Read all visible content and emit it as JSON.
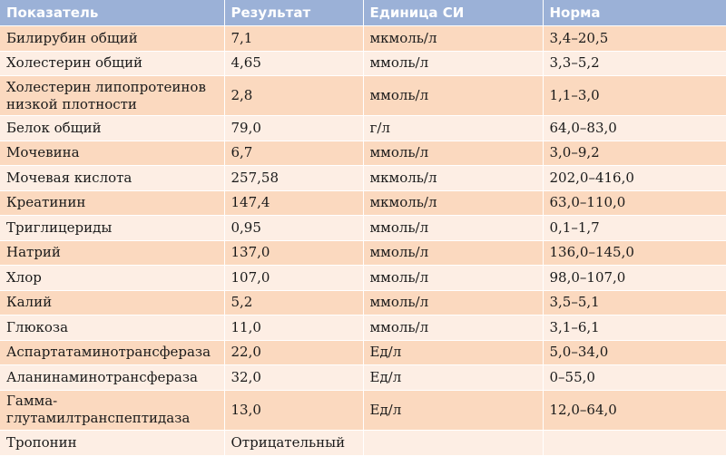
{
  "columns": [
    "Показатель",
    "Результат",
    "Единица СИ",
    "Норма"
  ],
  "rows": [
    {
      "name": "Билирубин общий",
      "result": "7,1",
      "unit": "мкмоль/л",
      "norm": "3,4–20,5"
    },
    {
      "name": "Холестерин общий",
      "result": "4,65",
      "unit": "ммоль/л",
      "norm": "3,3–5,2"
    },
    {
      "name": "Холестерин липопротеинов низкой плотности",
      "result": "2,8",
      "unit": "ммоль/л",
      "norm": "1,1–3,0"
    },
    {
      "name": "Белок общий",
      "result": "79,0",
      "unit": "г/л",
      "norm": "64,0–83,0"
    },
    {
      "name": "Мочевина",
      "result": "6,7",
      "unit": "ммоль/л",
      "norm": "3,0–9,2"
    },
    {
      "name": "Мочевая кислота",
      "result": "257,58",
      "unit": "мкмоль/л",
      "norm": "202,0–416,0"
    },
    {
      "name": "Креатинин",
      "result": "147,4",
      "unit": "мкмоль/л",
      "norm": "63,0–110,0"
    },
    {
      "name": "Триглицериды",
      "result": "0,95",
      "unit": "ммоль/л",
      "norm": "0,1–1,7"
    },
    {
      "name": "Натрий",
      "result": "137,0",
      "unit": "ммоль/л",
      "norm": "136,0–145,0"
    },
    {
      "name": "Хлор",
      "result": "107,0",
      "unit": "ммоль/л",
      "norm": "98,0–107,0"
    },
    {
      "name": "Калий",
      "result": "5,2",
      "unit": "ммоль/л",
      "norm": "3,5–5,1"
    },
    {
      "name": "Глюкоза",
      "result": "11,0",
      "unit": "ммоль/л",
      "norm": "3,1–6,1"
    },
    {
      "name": "Аспартатаминотрансфераза",
      "result": "22,0",
      "unit": "Ед/л",
      "norm": "5,0–34,0"
    },
    {
      "name": "Аланинаминотрансфераза",
      "result": "32,0",
      "unit": "Ед/л",
      "norm": "0–55,0"
    },
    {
      "name": "Гамма-глутамилтранспептидаза",
      "result": "13,0",
      "unit": "Ед/л",
      "norm": "12,0–64,0"
    },
    {
      "name": "Тропонин",
      "result": "Отрицательный",
      "unit": "",
      "norm": ""
    }
  ],
  "colors": {
    "header_bg": "#9bb1d7",
    "row_odd": "#fbd9bf",
    "row_even": "#fdeee4"
  }
}
